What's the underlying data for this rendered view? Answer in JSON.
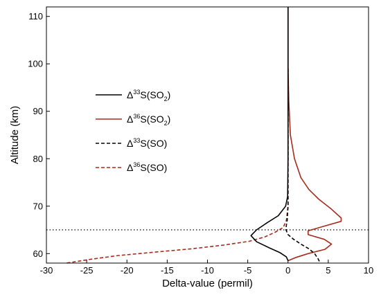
{
  "chart_data": {
    "type": "line",
    "xlabel": "Delta-value (permil)",
    "ylabel": "Altitude (km)",
    "xlim": [
      -30,
      10
    ],
    "ylim": [
      58,
      112
    ],
    "xticks": [
      -30,
      -25,
      -20,
      -15,
      -10,
      -5,
      0,
      5,
      10
    ],
    "yticks": [
      60,
      70,
      80,
      90,
      100,
      110
    ],
    "reference_line": {
      "y": 65,
      "style": "dotted"
    },
    "legend": {
      "placement": "center-left"
    },
    "series": [
      {
        "name": "Δ33S(SO2)",
        "legend": {
          "delta": "Δ",
          "sup": "33",
          "base": "S(SO",
          "sub": "2",
          "end": ")"
        },
        "color": "#000000",
        "dash": "solid",
        "points": [
          [
            0,
            112
          ],
          [
            0,
            100
          ],
          [
            0,
            80
          ],
          [
            -0.05,
            72
          ],
          [
            -0.3,
            70
          ],
          [
            -1.2,
            68
          ],
          [
            -2.6,
            66.5
          ],
          [
            -3.9,
            65
          ],
          [
            -4.6,
            63.8
          ],
          [
            -3.9,
            62.5
          ],
          [
            -2.3,
            61.2
          ],
          [
            -1,
            60.2
          ],
          [
            -0.2,
            59.3
          ],
          [
            0,
            58.5
          ]
        ]
      },
      {
        "name": "Δ36S(SO2)",
        "legend": {
          "delta": "Δ",
          "sup": "36",
          "base": "S(SO",
          "sub": "2",
          "end": ")"
        },
        "color": "#a52a1a",
        "dash": "solid",
        "points": [
          [
            0,
            112
          ],
          [
            0,
            99
          ],
          [
            0.1,
            92
          ],
          [
            0.3,
            85
          ],
          [
            0.8,
            80
          ],
          [
            1.6,
            76
          ],
          [
            2.6,
            73.5
          ],
          [
            3.8,
            71.5
          ],
          [
            5.3,
            69.5
          ],
          [
            6.6,
            67.5
          ],
          [
            6.6,
            66.8
          ],
          [
            4.5,
            65.8
          ],
          [
            2.5,
            64.8
          ],
          [
            2.5,
            64
          ],
          [
            4.5,
            63
          ],
          [
            5.4,
            62
          ],
          [
            4.6,
            60.9
          ],
          [
            2.5,
            60
          ],
          [
            1,
            59.2
          ],
          [
            0,
            58.5
          ]
        ]
      },
      {
        "name": "Δ33S(SO)",
        "legend": {
          "delta": "Δ",
          "sup": "33",
          "base": "S(SO",
          "sub": "",
          "end": ")"
        },
        "color": "#000000",
        "dash": "dashed",
        "points": [
          [
            0,
            99
          ],
          [
            0,
            80
          ],
          [
            0,
            70
          ],
          [
            -0.1,
            67
          ],
          [
            -0.2,
            66
          ],
          [
            -0.25,
            65
          ],
          [
            0,
            64
          ],
          [
            0.7,
            63
          ],
          [
            1.6,
            62
          ],
          [
            2.6,
            61
          ],
          [
            3.3,
            60
          ],
          [
            3.7,
            59
          ],
          [
            4,
            58
          ]
        ]
      },
      {
        "name": "Δ36S(SO)",
        "legend": {
          "delta": "Δ",
          "sup": "36",
          "base": "S(SO",
          "sub": "",
          "end": ")"
        },
        "color": "#a52a1a",
        "dash": "dashed",
        "points": [
          [
            0,
            99
          ],
          [
            0,
            80
          ],
          [
            0,
            70
          ],
          [
            -0.2,
            67
          ],
          [
            -0.6,
            65.5
          ],
          [
            -1.6,
            64.5
          ],
          [
            -2.9,
            63.5
          ],
          [
            -4.8,
            62.6
          ],
          [
            -8,
            61.8
          ],
          [
            -12,
            61
          ],
          [
            -16,
            60.4
          ],
          [
            -21,
            59.6
          ],
          [
            -24.5,
            58.8
          ],
          [
            -27.5,
            58
          ]
        ]
      }
    ]
  }
}
